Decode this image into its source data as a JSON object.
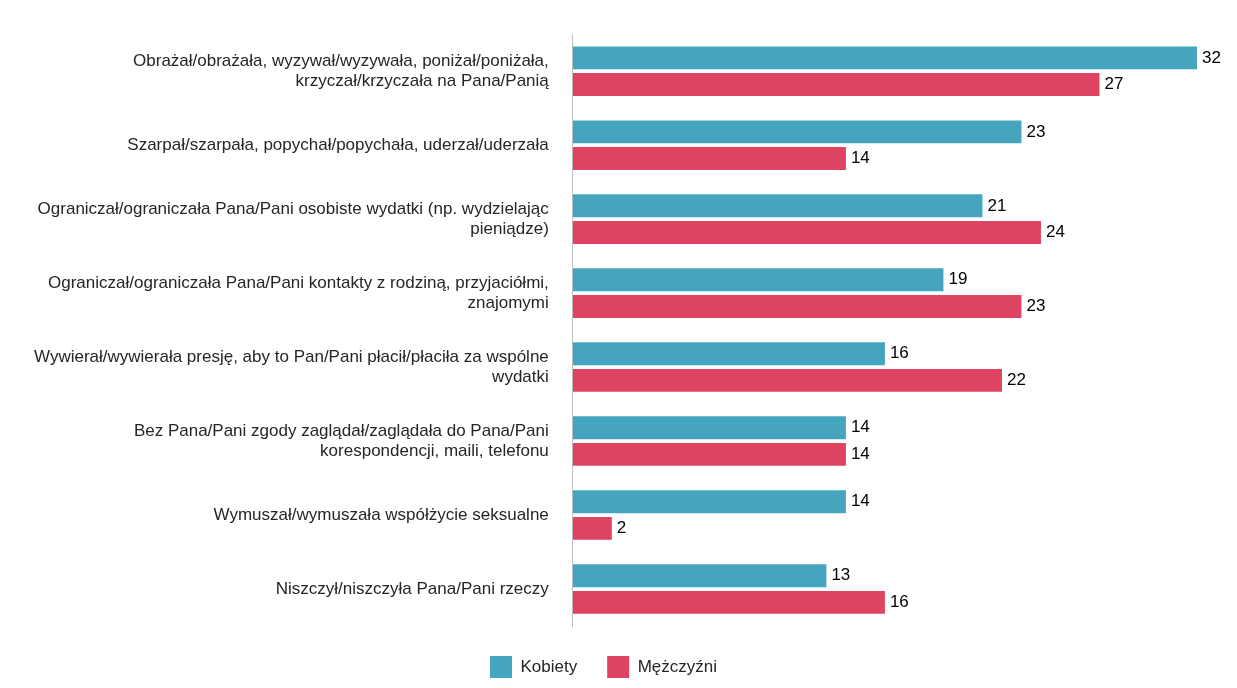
{
  "chart_data": {
    "type": "bar",
    "orientation": "horizontal",
    "data_labels": true,
    "grid": false,
    "legend": "bottom",
    "xlim": [
      0,
      32
    ],
    "categories": [
      "Obrażał/obrażała, wyzywał/wyzywała, poniżał/poniżała, krzyczał/krzyczała na Pana/Panią",
      "Szarpał/szarpała, popychał/popychała, uderzał/uderzała",
      "Ograniczał/ograniczała Pana/Pani osobiste wydatki (np. wydzielając pieniądze)",
      "Ograniczał/ograniczała Pana/Pani kontakty z rodziną, przyjaciółmi, znajomymi",
      "Wywierał/wywierała presję, aby to Pan/Pani płacił/płaciła za wspólne wydatki",
      "Bez Pana/Pani zgody zaglądał/zaglądała do Pana/Pani korespondencji, maili, telefonu",
      "Wymuszał/wymuszała współżycie seksualne",
      "Niszczył/niszczyła Pana/Pani rzeczy"
    ],
    "series": [
      {
        "name": "Kobiety",
        "color": "#45a5bf",
        "values": [
          32,
          23,
          21,
          19,
          16,
          14,
          14,
          13
        ]
      },
      {
        "name": "Mężczyźni",
        "color": "#de4362",
        "values": [
          27,
          14,
          24,
          23,
          22,
          14,
          2,
          16
        ]
      }
    ]
  }
}
